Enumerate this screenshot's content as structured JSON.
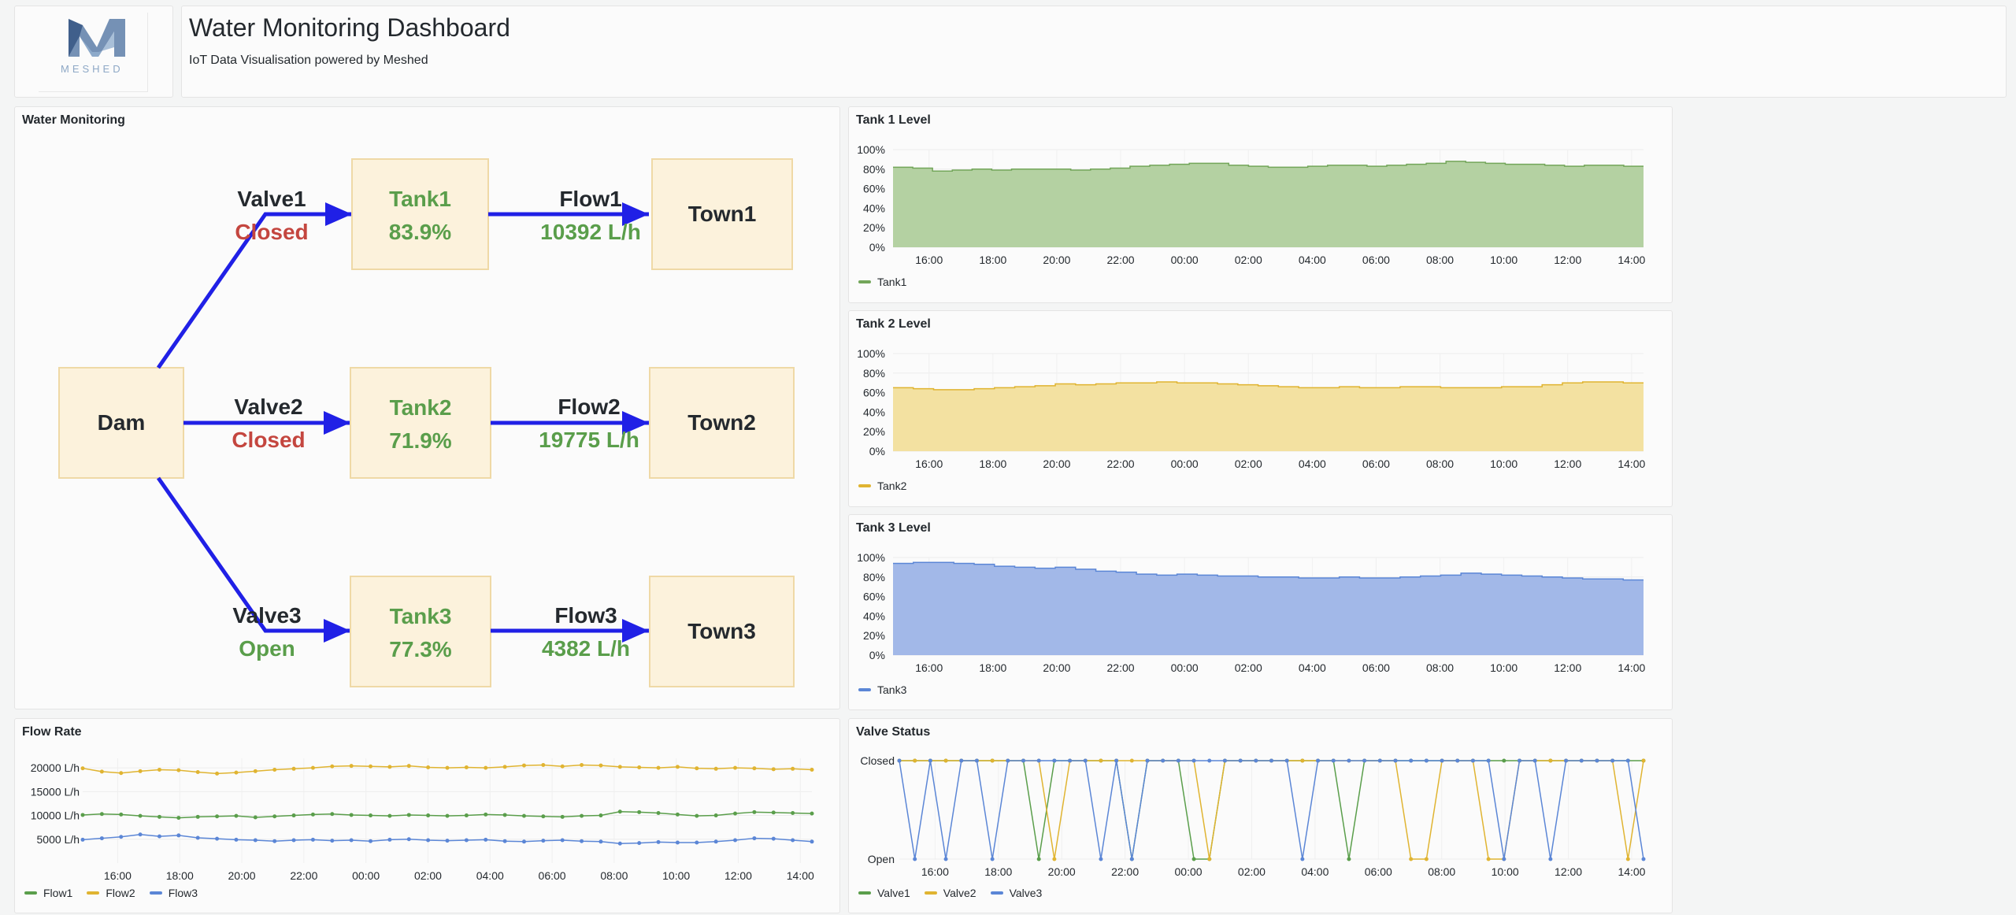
{
  "header": {
    "logo_text": "MESHED",
    "title": "Water Monitoring Dashboard",
    "subtitle": "IoT Data Visualisation powered by Meshed"
  },
  "diagram": {
    "panel_title": "Water Monitoring",
    "dam_label": "Dam",
    "valves": [
      {
        "name": "Valve1",
        "status": "Closed"
      },
      {
        "name": "Valve2",
        "status": "Closed"
      },
      {
        "name": "Valve3",
        "status": "Open"
      }
    ],
    "tanks": [
      {
        "name": "Tank1",
        "level": "83.9%"
      },
      {
        "name": "Tank2",
        "level": "71.9%"
      },
      {
        "name": "Tank3",
        "level": "77.3%"
      }
    ],
    "flows": [
      {
        "name": "Flow1",
        "rate": "10392 L/h"
      },
      {
        "name": "Flow2",
        "rate": "19775 L/h"
      },
      {
        "name": "Flow3",
        "rate": "4382 L/h"
      }
    ],
    "towns": [
      "Town1",
      "Town2",
      "Town3"
    ],
    "colors": {
      "box_fill": "#fcf2dc",
      "box_stroke": "#efd9a6",
      "arrow": "#2020e6",
      "closed": "#c4463f",
      "open_value": "#5a9e4b"
    }
  },
  "chart_data": [
    {
      "id": "tank1",
      "panel_title": "Tank 1 Level",
      "type": "area",
      "color": "#73a65a",
      "fill": "#b4d1a2",
      "xticks": [
        "16:00",
        "18:00",
        "20:00",
        "22:00",
        "00:00",
        "02:00",
        "04:00",
        "06:00",
        "08:00",
        "10:00",
        "12:00",
        "14:00"
      ],
      "yticks": [
        "0%",
        "20%",
        "40%",
        "60%",
        "80%",
        "100%"
      ],
      "ylim": [
        0,
        100
      ],
      "series": [
        {
          "name": "Tank1",
          "values": [
            82,
            81,
            78,
            79,
            80,
            79,
            80,
            80,
            80,
            79,
            80,
            81,
            83,
            84,
            85,
            86,
            86,
            84,
            83,
            82,
            82,
            83,
            84,
            84,
            83,
            84,
            85,
            86,
            88,
            87,
            86,
            85,
            85,
            84,
            83,
            84,
            84,
            83
          ]
        }
      ]
    },
    {
      "id": "tank2",
      "panel_title": "Tank 2 Level",
      "type": "area",
      "color": "#e0b431",
      "fill": "#f3e1a1",
      "xticks": [
        "16:00",
        "18:00",
        "20:00",
        "22:00",
        "00:00",
        "02:00",
        "04:00",
        "06:00",
        "08:00",
        "10:00",
        "12:00",
        "14:00"
      ],
      "yticks": [
        "0%",
        "20%",
        "40%",
        "60%",
        "80%",
        "100%"
      ],
      "ylim": [
        0,
        100
      ],
      "series": [
        {
          "name": "Tank2",
          "values": [
            65,
            64,
            63,
            63,
            64,
            65,
            66,
            67,
            69,
            68,
            69,
            70,
            70,
            71,
            70,
            70,
            69,
            68,
            67,
            66,
            65,
            65,
            66,
            65,
            65,
            66,
            66,
            65,
            65,
            65,
            66,
            66,
            68,
            70,
            71,
            71,
            70
          ]
        }
      ]
    },
    {
      "id": "tank3",
      "panel_title": "Tank 3 Level",
      "type": "area",
      "color": "#5b86d6",
      "fill": "#a2b8e8",
      "xticks": [
        "16:00",
        "18:00",
        "20:00",
        "22:00",
        "00:00",
        "02:00",
        "04:00",
        "06:00",
        "08:00",
        "10:00",
        "12:00",
        "14:00"
      ],
      "yticks": [
        "0%",
        "20%",
        "40%",
        "60%",
        "80%",
        "100%"
      ],
      "ylim": [
        0,
        100
      ],
      "series": [
        {
          "name": "Tank3",
          "values": [
            94,
            95,
            95,
            94,
            93,
            91,
            90,
            89,
            90,
            88,
            86,
            85,
            83,
            82,
            83,
            82,
            81,
            81,
            80,
            80,
            79,
            79,
            80,
            79,
            79,
            80,
            81,
            82,
            84,
            83,
            82,
            81,
            80,
            79,
            78,
            78,
            77
          ]
        }
      ]
    },
    {
      "id": "flow",
      "panel_title": "Flow Rate",
      "type": "line",
      "xticks": [
        "16:00",
        "18:00",
        "20:00",
        "22:00",
        "00:00",
        "02:00",
        "04:00",
        "06:00",
        "08:00",
        "10:00",
        "12:00",
        "14:00"
      ],
      "yticks": [
        "5000 L/h",
        "10000 L/h",
        "15000 L/h",
        "20000 L/h"
      ],
      "ylim": [
        0,
        22000
      ],
      "series": [
        {
          "name": "Flow1",
          "color": "#5a9e4b",
          "values": [
            10100,
            10300,
            10200,
            9900,
            9700,
            9500,
            9700,
            9800,
            9900,
            9600,
            9800,
            10000,
            10200,
            10300,
            10100,
            10000,
            9900,
            10100,
            10000,
            9900,
            10000,
            10200,
            10100,
            9900,
            9800,
            9700,
            9900,
            10000,
            10800,
            10700,
            10500,
            10200,
            9900,
            10000,
            10400,
            10700,
            10600,
            10500,
            10400
          ]
        },
        {
          "name": "Flow2",
          "color": "#e0b431",
          "values": [
            19900,
            19200,
            18900,
            19300,
            19600,
            19500,
            19100,
            18800,
            19000,
            19300,
            19600,
            19800,
            20000,
            20300,
            20400,
            20300,
            20200,
            20400,
            20100,
            20000,
            20100,
            20000,
            20200,
            20500,
            20600,
            20300,
            20600,
            20500,
            20200,
            20100,
            20000,
            20200,
            19900,
            19800,
            20000,
            19900,
            19700,
            19800,
            19600
          ]
        },
        {
          "name": "Flow3",
          "color": "#5b86d6",
          "values": [
            4900,
            5200,
            5500,
            6000,
            5600,
            5800,
            5300,
            5100,
            4900,
            4800,
            4600,
            4800,
            4900,
            4700,
            4800,
            4600,
            4900,
            5000,
            4800,
            4700,
            4800,
            4900,
            4600,
            4500,
            4700,
            4800,
            4600,
            4500,
            4100,
            4200,
            4400,
            4300,
            4300,
            4500,
            4800,
            5200,
            5100,
            4800,
            4500
          ]
        }
      ]
    },
    {
      "id": "valve",
      "panel_title": "Valve Status",
      "type": "line",
      "xticks": [
        "16:00",
        "18:00",
        "20:00",
        "22:00",
        "00:00",
        "02:00",
        "04:00",
        "06:00",
        "08:00",
        "10:00",
        "12:00",
        "14:00"
      ],
      "yticks": [
        "Open",
        "Closed"
      ],
      "ylim": [
        0,
        1
      ],
      "series": [
        {
          "name": "Valve1",
          "color": "#5a9e4b",
          "values": [
            1,
            1,
            1,
            1,
            1,
            1,
            1,
            1,
            1,
            0,
            1,
            1,
            1,
            1,
            1,
            0,
            1,
            1,
            1,
            0,
            0,
            1,
            1,
            1,
            1,
            1,
            1,
            1,
            1,
            0,
            1,
            1,
            1,
            1,
            1,
            1,
            1,
            1,
            1,
            1,
            1,
            1,
            1,
            1,
            1,
            1,
            1,
            1,
            1
          ]
        },
        {
          "name": "Valve2",
          "color": "#e0b431",
          "values": [
            1,
            1,
            1,
            1,
            1,
            1,
            1,
            1,
            1,
            1,
            0,
            1,
            1,
            1,
            1,
            1,
            1,
            1,
            1,
            1,
            0,
            1,
            1,
            1,
            1,
            1,
            1,
            1,
            1,
            1,
            1,
            1,
            1,
            0,
            0,
            1,
            1,
            1,
            0,
            0,
            1,
            1,
            1,
            1,
            1,
            1,
            1,
            0,
            1
          ]
        },
        {
          "name": "Valve3",
          "color": "#5b86d6",
          "values": [
            1,
            0,
            1,
            0,
            1,
            1,
            0,
            1,
            1,
            1,
            1,
            1,
            1,
            0,
            1,
            0,
            1,
            1,
            1,
            1,
            1,
            1,
            1,
            1,
            1,
            1,
            0,
            1,
            1,
            1,
            1,
            1,
            1,
            1,
            1,
            1,
            1,
            1,
            1,
            0,
            1,
            1,
            0,
            1,
            1,
            1,
            1,
            1,
            0
          ]
        }
      ]
    }
  ]
}
